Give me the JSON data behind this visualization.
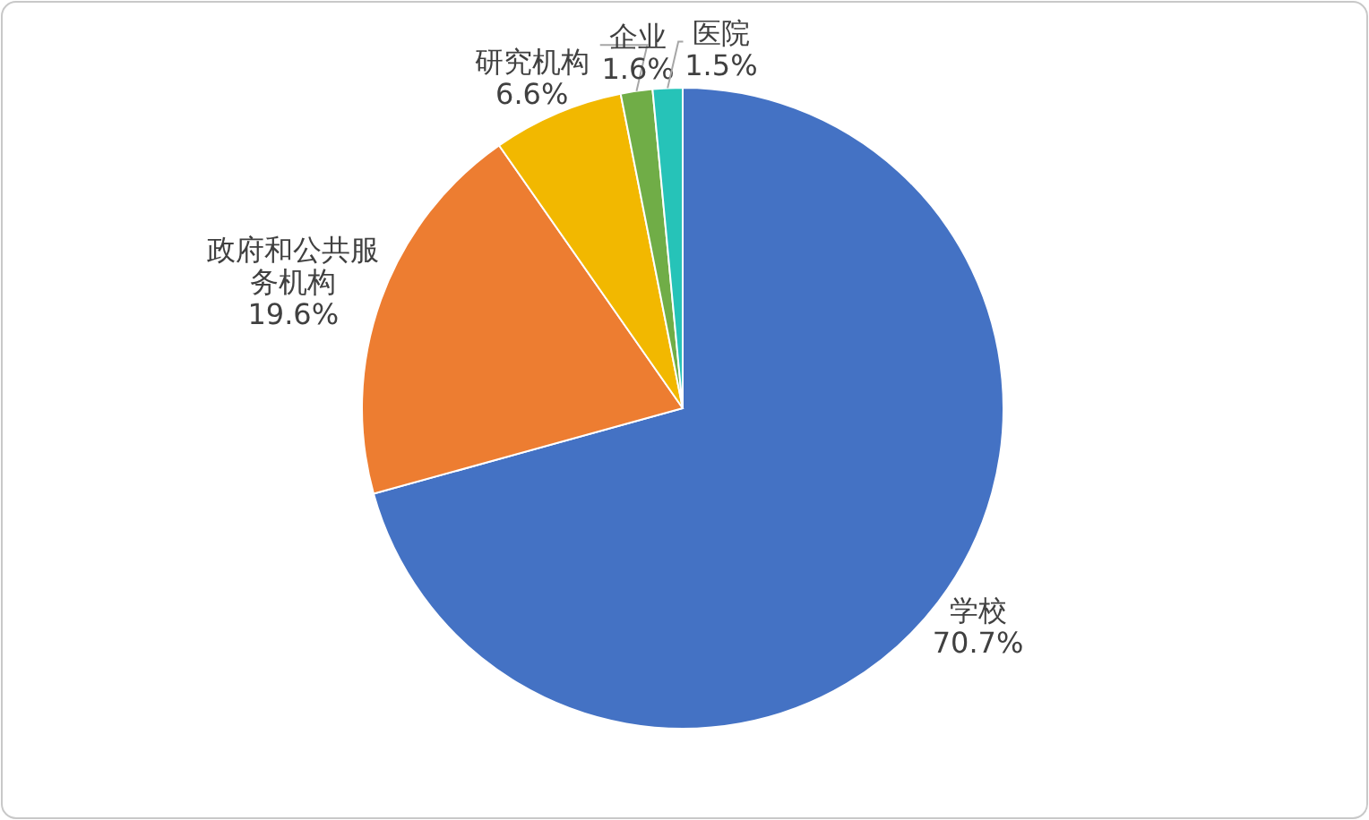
{
  "chart_data": {
    "type": "pie",
    "categories": [
      "学校",
      "政府和公共服务机构",
      "研究机构",
      "企业",
      "医院"
    ],
    "values": [
      70.7,
      19.6,
      6.6,
      1.6,
      1.5
    ],
    "colors": [
      "#4472c4",
      "#ed7d31",
      "#f2b800",
      "#70ad47",
      "#26c3b8"
    ],
    "value_labels": [
      "70.7%",
      "19.6%",
      "6.6%",
      "1.6%",
      "1.5%"
    ]
  }
}
